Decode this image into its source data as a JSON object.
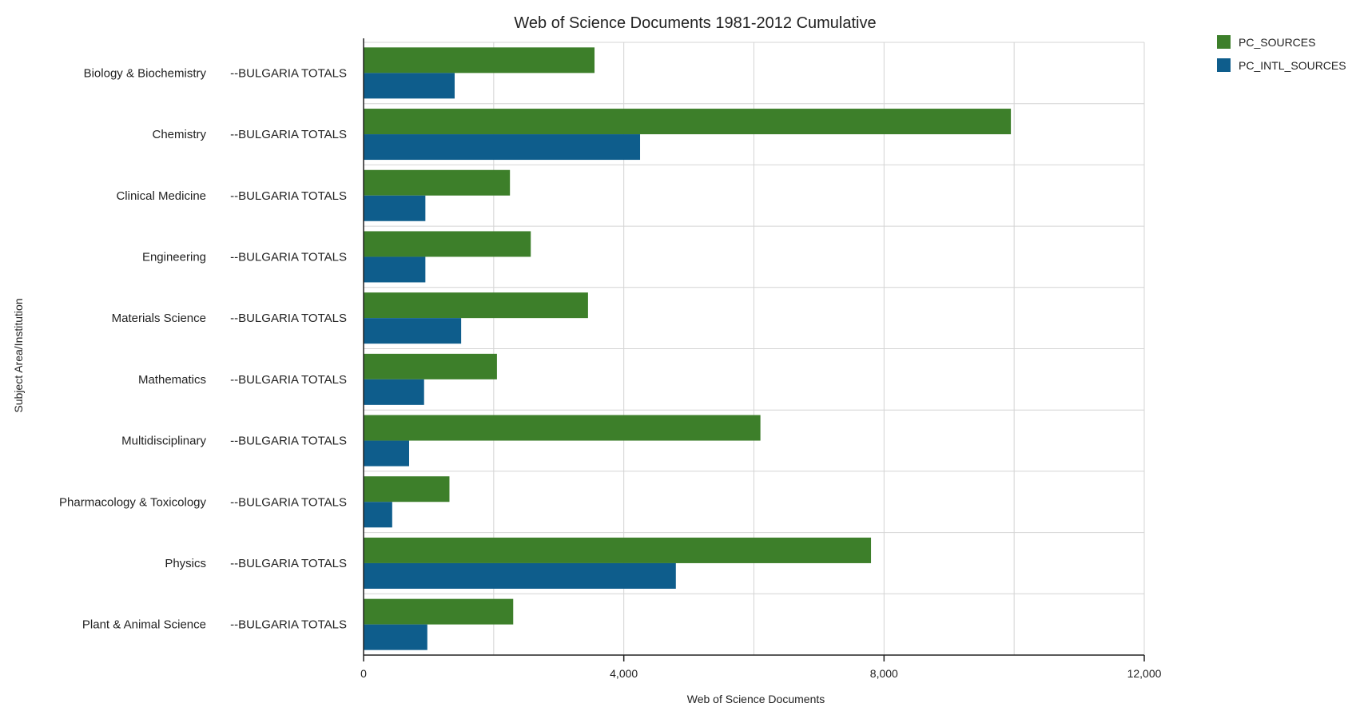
{
  "chart_data": {
    "type": "bar",
    "orientation": "horizontal",
    "title": "Web of Science Documents 1981-2012 Cumulative",
    "xlabel": "Web of Science Documents",
    "ylabel": "Subject Area/Institution",
    "xlim": [
      0,
      12000
    ],
    "xticks": [
      0,
      4000,
      8000,
      12000
    ],
    "xtick_labels": [
      "0",
      "4,000",
      "8,000",
      "12,000"
    ],
    "grid": true,
    "legend_position": "top-right",
    "categories": [
      "Biology & Biochemistry",
      "Chemistry",
      "Clinical Medicine",
      "Engineering",
      "Materials Science",
      "Mathematics",
      "Multidisciplinary",
      "Pharmacology & Toxicology",
      "Physics",
      "Plant & Animal Science"
    ],
    "sub_label": "--BULGARIA TOTALS",
    "series": [
      {
        "name": "PC_SOURCES",
        "color": "#3d7f2a",
        "values": [
          3550,
          9950,
          2250,
          2570,
          3450,
          2050,
          6100,
          1320,
          7800,
          2300
        ]
      },
      {
        "name": "PC_INTL_SOURCES",
        "color": "#0e5d8c",
        "values": [
          1400,
          4250,
          950,
          950,
          1500,
          930,
          700,
          440,
          4800,
          980
        ]
      }
    ]
  }
}
